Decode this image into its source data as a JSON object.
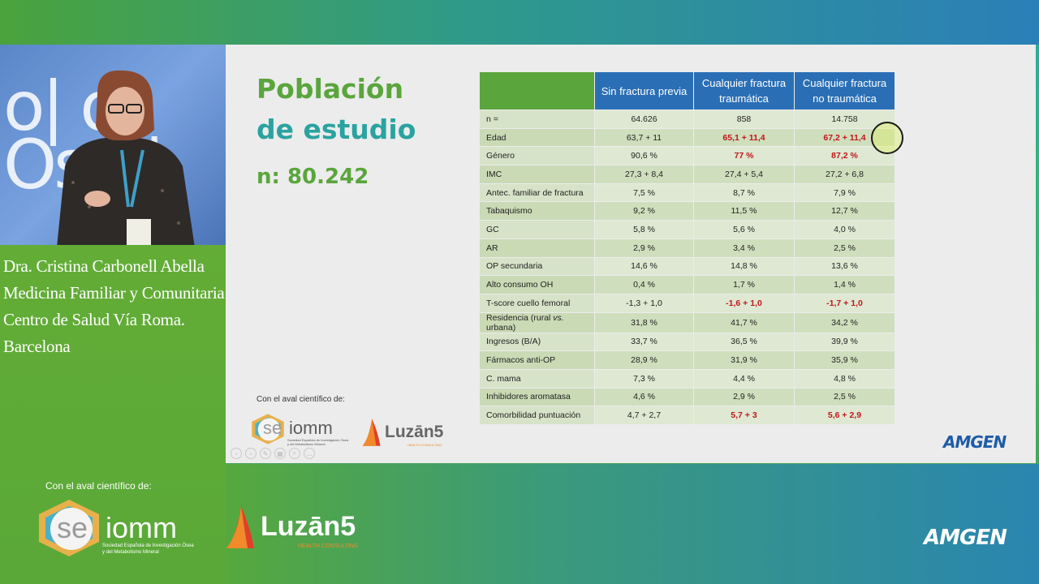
{
  "speaker": {
    "lines": [
      "Dra. Cristina Carbonell Abella",
      "Medicina Familiar y Comunitaria",
      "Centro de Salud Vía Roma.",
      "Barcelona"
    ]
  },
  "footer": {
    "aval_label": "Con el aval científico de:",
    "seiomm_label": "seiomm",
    "seiomm_prefix": "se",
    "seiomm_suffix": "iomm",
    "seiomm_sub_1": "Sociedad Española de Investigación Ósea",
    "seiomm_sub_2": "y del Metabolismo Mineral",
    "luzan_label": "Luzān5",
    "luzan_sub": "HEALTH CONSULTING",
    "amgen_label": "AMGEN"
  },
  "slide": {
    "title_line1": "Población",
    "title_line2": "de estudio",
    "n_label": "n: 80.242",
    "aval_label": "Con el aval científico de:",
    "amgen_label": "AMGEN",
    "table": {
      "headers": [
        "",
        "Sin fractura previa",
        "Cualquier fractura traumática",
        "Cualquier fractura no traumática"
      ],
      "rows": [
        {
          "label": "n =",
          "values": [
            "64.626",
            "858",
            "14.758"
          ]
        },
        {
          "label": "Edad",
          "values": [
            "63,7 + 11",
            "65,1 + 11,4",
            "67,2 + 11,4"
          ]
        },
        {
          "label": "Género",
          "values": [
            "90,6 %",
            "77 %",
            "87,2 %"
          ]
        },
        {
          "label": "IMC",
          "values": [
            "27,3 + 8,4",
            "27,4 + 5,4",
            "27,2 + 6,8"
          ]
        },
        {
          "label": "Antec. familiar de fractura",
          "values": [
            "7,5 %",
            "8,7 %",
            "7,9 %"
          ]
        },
        {
          "label": "Tabaquismo",
          "values": [
            "9,2 %",
            "11,5 %",
            "12,7 %"
          ]
        },
        {
          "label": "GC",
          "values": [
            "5,8 %",
            "5,6 %",
            "4,0 %"
          ]
        },
        {
          "label": "AR",
          "values": [
            "2,9 %",
            "3,4 %",
            "2,5 %"
          ]
        },
        {
          "label": "OP secundaria",
          "values": [
            "14,6 %",
            "14,8 %",
            "13,6 %"
          ]
        },
        {
          "label": "Alto consumo OH",
          "values": [
            "0,4 %",
            "1,7 %",
            "1,4 %"
          ]
        },
        {
          "label": "T-score cuello femoral",
          "values": [
            "-1,3 + 1,0",
            "-1,6 + 1,0",
            "-1,7 + 1,0"
          ]
        },
        {
          "label_pre": "Residencia (rural ",
          "label_em": "vs.",
          "label_post": " urbana)",
          "values": [
            "31,8 %",
            "41,7 %",
            "34,2 %"
          ]
        },
        {
          "label": "Ingresos (B/A)",
          "values": [
            "33,7 %",
            "36,5 %",
            "39,9 %"
          ]
        },
        {
          "label": "Fármacos anti-OP",
          "values": [
            "28,9 %",
            "31,9 %",
            "35,9 %"
          ]
        },
        {
          "label": "C. mama",
          "values": [
            "7,3 %",
            "4,4 %",
            "4,8 %"
          ]
        },
        {
          "label": "Inhibidores aromatasa",
          "values": [
            "4,6 %",
            "2,9 %",
            "2,5 %"
          ]
        },
        {
          "label": "Comorbilidad puntuación",
          "values": [
            "4,7 + 2,7",
            "5,7 + 3",
            "5,6 + 2,9"
          ]
        }
      ]
    }
  },
  "colors": {
    "title_green": "#5aa53c",
    "title_teal": "#2aa3a0",
    "header_blue": "#2a6fb5",
    "highlight_red": "#c0161a",
    "amgen_blue": "#1f5ca8"
  }
}
